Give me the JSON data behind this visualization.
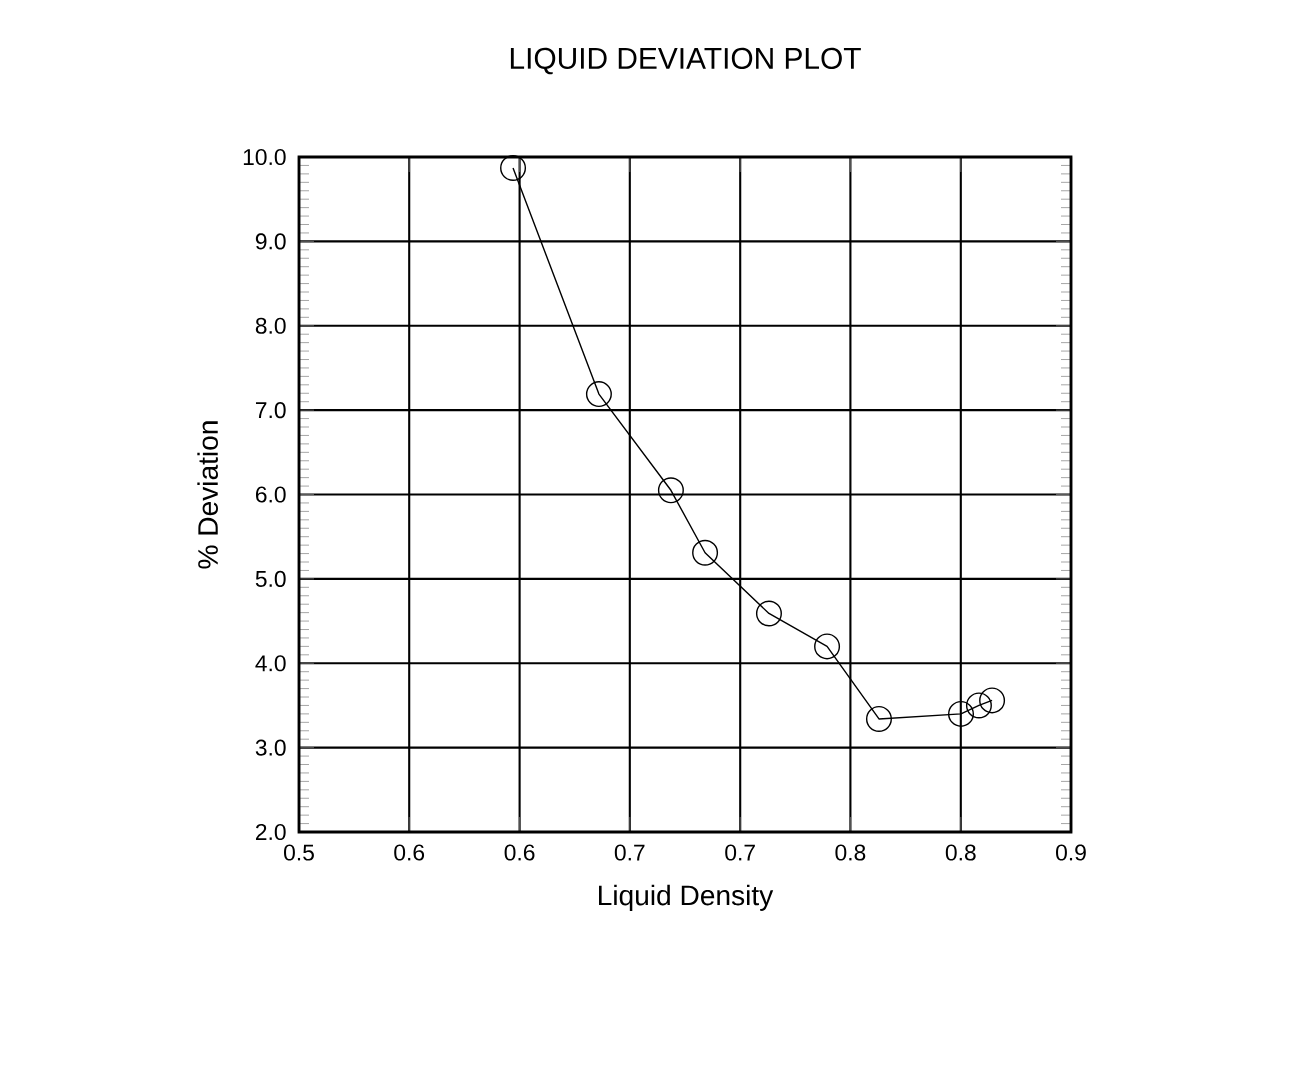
{
  "chart_data": {
    "type": "line",
    "title": "LIQUID DEVIATION PLOT",
    "xlabel": "Liquid Density",
    "ylabel": "% Deviation",
    "x": [
      0.6109,
      0.6554,
      0.6927,
      0.7104,
      0.7435,
      0.7736,
      0.8005,
      0.843,
      0.8523,
      0.8591
    ],
    "values": [
      9.87,
      7.19,
      6.05,
      5.31,
      4.59,
      4.2,
      3.34,
      3.4,
      3.5,
      3.56
    ],
    "color": "#000000",
    "marker": "circle",
    "line_style": "solid",
    "grid": true,
    "xlim": [
      0.5,
      0.9
    ],
    "ylim": [
      2.0,
      10.0
    ],
    "xticks": [
      0.5,
      {
        "value": 0.5571,
        "label": "0.6"
      },
      {
        "value": 0.6143,
        "label": "0.6"
      },
      {
        "value": 0.6714,
        "label": "0.7"
      },
      {
        "value": 0.7286,
        "label": "0.7"
      },
      {
        "value": 0.7857,
        "label": "0.8"
      },
      {
        "value": 0.8429,
        "label": "0.8"
      },
      0.9
    ],
    "yticks": [
      {
        "value": 2.0,
        "label": "2.0"
      },
      {
        "value": 3.0,
        "label": "3.0"
      },
      {
        "value": 4.0,
        "label": "4.0"
      },
      {
        "value": 5.0,
        "label": "5.0"
      },
      {
        "value": 6.0,
        "label": "6.0"
      },
      {
        "value": 7.0,
        "label": "7.0"
      },
      {
        "value": 8.0,
        "label": "8.0"
      },
      {
        "value": 9.0,
        "label": "9.0"
      },
      {
        "value": 10.0,
        "label": "10.0"
      }
    ]
  }
}
